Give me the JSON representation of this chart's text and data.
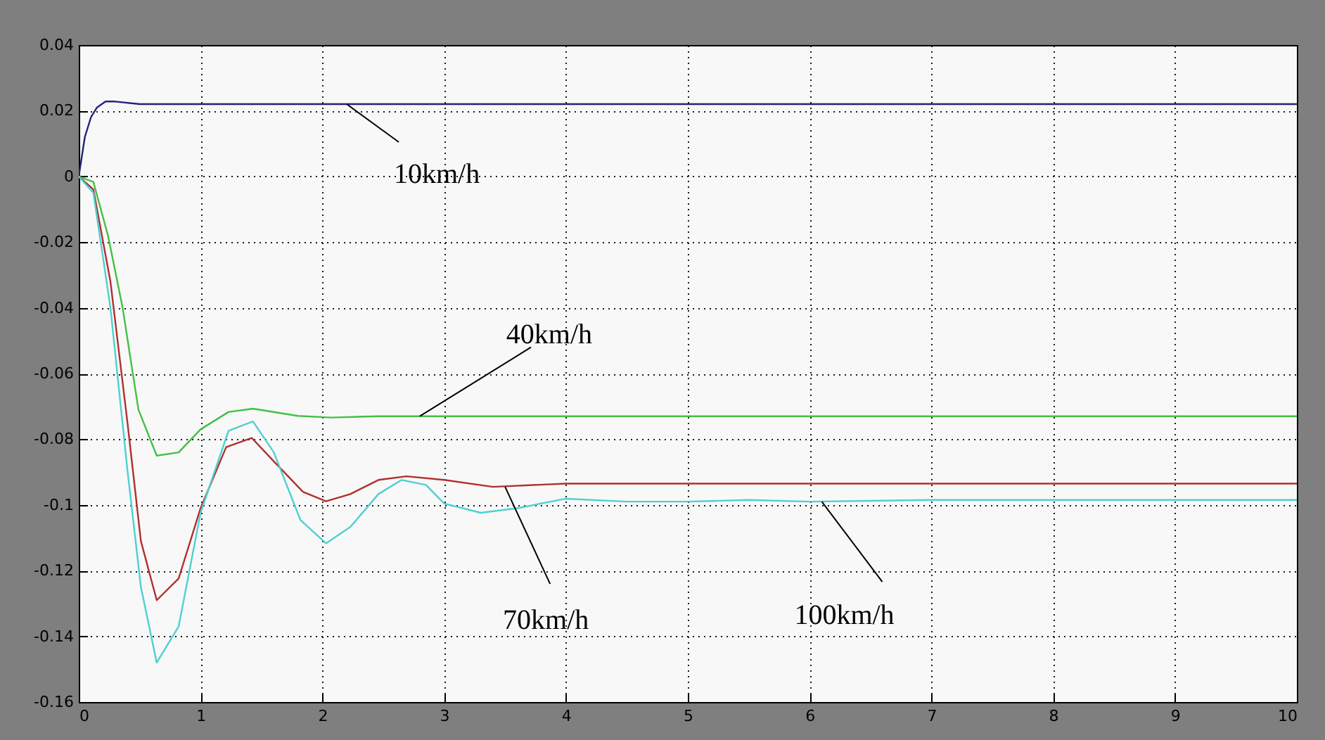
{
  "chart_data": {
    "type": "line",
    "xlim": [
      0,
      10
    ],
    "ylim": [
      -0.16,
      0.04
    ],
    "xticks": [
      0,
      1,
      2,
      3,
      4,
      5,
      6,
      7,
      8,
      9,
      10
    ],
    "yticks": [
      -0.16,
      -0.14,
      -0.12,
      -0.1,
      -0.08,
      -0.06,
      -0.04,
      -0.02,
      0,
      0.02,
      0.04
    ],
    "grid": true,
    "series": [
      {
        "color": "#23237a",
        "x": [
          0,
          0.05,
          0.1,
          0.15,
          0.22,
          0.3,
          0.5,
          1,
          10
        ],
        "values": [
          0,
          0.012,
          0.018,
          0.021,
          0.0228,
          0.0228,
          0.022,
          0.022,
          0.022
        ]
      },
      {
        "color": "#44c044",
        "x": [
          0,
          0.12,
          0.24,
          0.36,
          0.49,
          0.64,
          0.82,
          1.0,
          1.23,
          1.43,
          1.8,
          2.07,
          2.46,
          10
        ],
        "values": [
          0,
          -0.0017,
          -0.018,
          -0.04,
          -0.071,
          -0.085,
          -0.084,
          -0.077,
          -0.0717,
          -0.0707,
          -0.0729,
          -0.0734,
          -0.073,
          -0.073
        ]
      },
      {
        "color": "#b03030",
        "x": [
          0,
          0.12,
          0.26,
          0.4,
          0.51,
          0.64,
          0.82,
          1.0,
          1.21,
          1.42,
          1.6,
          1.84,
          2.03,
          2.23,
          2.46,
          2.69,
          3.0,
          3.4,
          4.0,
          4.5,
          10
        ],
        "values": [
          0,
          -0.004,
          -0.032,
          -0.075,
          -0.111,
          -0.129,
          -0.1224,
          -0.101,
          -0.0824,
          -0.0796,
          -0.0867,
          -0.096,
          -0.0989,
          -0.0967,
          -0.0924,
          -0.0913,
          -0.0924,
          -0.0945,
          -0.0935,
          -0.0935,
          -0.0935
        ]
      },
      {
        "color": "#4fd0d0",
        "x": [
          0,
          0.12,
          0.26,
          0.4,
          0.51,
          0.64,
          0.82,
          1.0,
          1.23,
          1.43,
          1.6,
          1.82,
          2.03,
          2.23,
          2.46,
          2.65,
          2.85,
          3.0,
          3.3,
          3.6,
          4.0,
          4.5,
          5.0,
          5.5,
          6.0,
          7.0,
          10
        ],
        "values": [
          0,
          -0.005,
          -0.04,
          -0.0896,
          -0.125,
          -0.148,
          -0.137,
          -0.1024,
          -0.0774,
          -0.0746,
          -0.0839,
          -0.1046,
          -0.1117,
          -0.1067,
          -0.0967,
          -0.0924,
          -0.0939,
          -0.0996,
          -0.1024,
          -0.101,
          -0.0981,
          -0.099,
          -0.099,
          -0.0985,
          -0.099,
          -0.0985,
          -0.0985
        ]
      }
    ],
    "annotations": [
      {
        "text": "10km/h",
        "x": 2.2,
        "y": 0.022
      },
      {
        "text": "40km/h",
        "x": 2.8,
        "y": -0.073
      },
      {
        "text": "70km/h",
        "x": 3.5,
        "y": -0.0945
      },
      {
        "text": "100km/h",
        "x": 6.1,
        "y": -0.099
      }
    ]
  }
}
